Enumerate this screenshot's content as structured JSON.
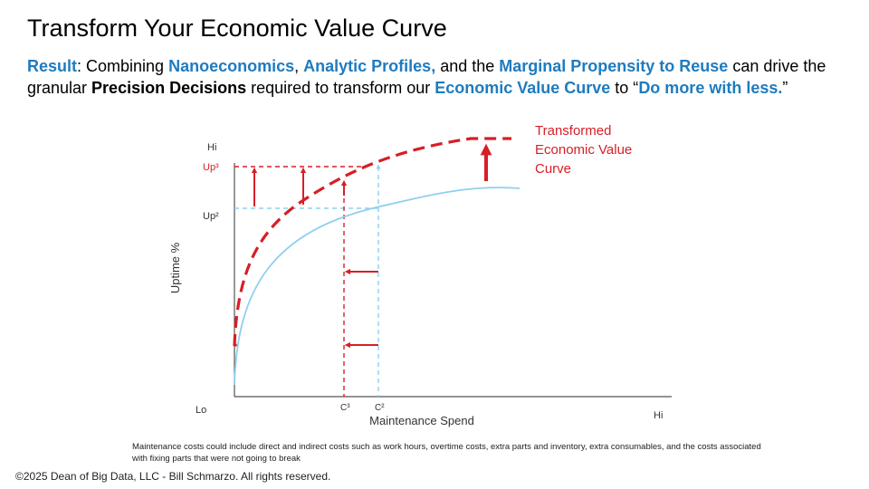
{
  "slide": {
    "title": "Transform Your Economic Value Curve",
    "subtitle": {
      "result": "Result",
      "t1": ": Combining ",
      "nanoeconomics": "Nanoeconomics",
      "t2": ", ",
      "analytic_profiles": "Analytic Profiles,",
      "t3": " and the ",
      "mpr": "Marginal Propensity to Reuse",
      "t4": " can drive the granular ",
      "precision_decisions": "Precision Decisions",
      "t5": " required to transform our ",
      "evc": "Economic Value Curve",
      "t6": " to “",
      "do_more": "Do more with less.",
      "t7": "”"
    },
    "footnote": "Maintenance costs could include direct and indirect costs such as work hours, overtime costs, extra parts and inventory, extra consumables, and the costs associated with fixing parts that were not going to break",
    "copyright": "©2025 Dean of Big Data, LLC - Bill Schmarzo. All rights reserved."
  },
  "diagram": {
    "y_axis_label": "Uptime %",
    "x_axis_label": "Maintenance Spend",
    "y_hi": "Hi",
    "x_lo": "Lo",
    "x_hi": "Hi",
    "up3": "Up³",
    "up2": "Up²",
    "c3": "C³",
    "c2": "C²",
    "transformed_curve_label": "Transformed Economic Value Curve"
  },
  "colors": {
    "accent_blue": "#1f7bbf",
    "curve_red": "#d61f26",
    "curve_light_blue": "#8fd0ee"
  }
}
